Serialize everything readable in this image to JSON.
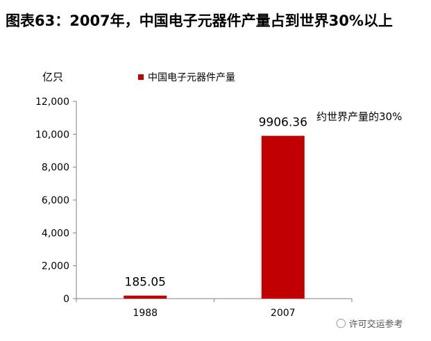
{
  "title": "图表63：2007年，中国电子元器件产量占到世界30%以上",
  "unit_label": "亿只",
  "annotation": "约世界产量的30%",
  "watermark": "许可交运参考",
  "colors": {
    "bar": "#c00000",
    "axis": "#808080"
  },
  "chart_data": {
    "type": "bar",
    "title": "",
    "xlabel": "",
    "ylabel": "亿只",
    "ylim": [
      0,
      12000
    ],
    "yticks": [
      "0",
      "2,000",
      "4,000",
      "6,000",
      "8,000",
      "10,000",
      "12,000"
    ],
    "grid": false,
    "legend_position": "top",
    "categories": [
      "1988",
      "2007"
    ],
    "series": [
      {
        "name": "中国电子元器件产量",
        "values": [
          185.05,
          9906.36
        ],
        "data_labels": [
          "185.05",
          "9906.36"
        ]
      }
    ]
  }
}
